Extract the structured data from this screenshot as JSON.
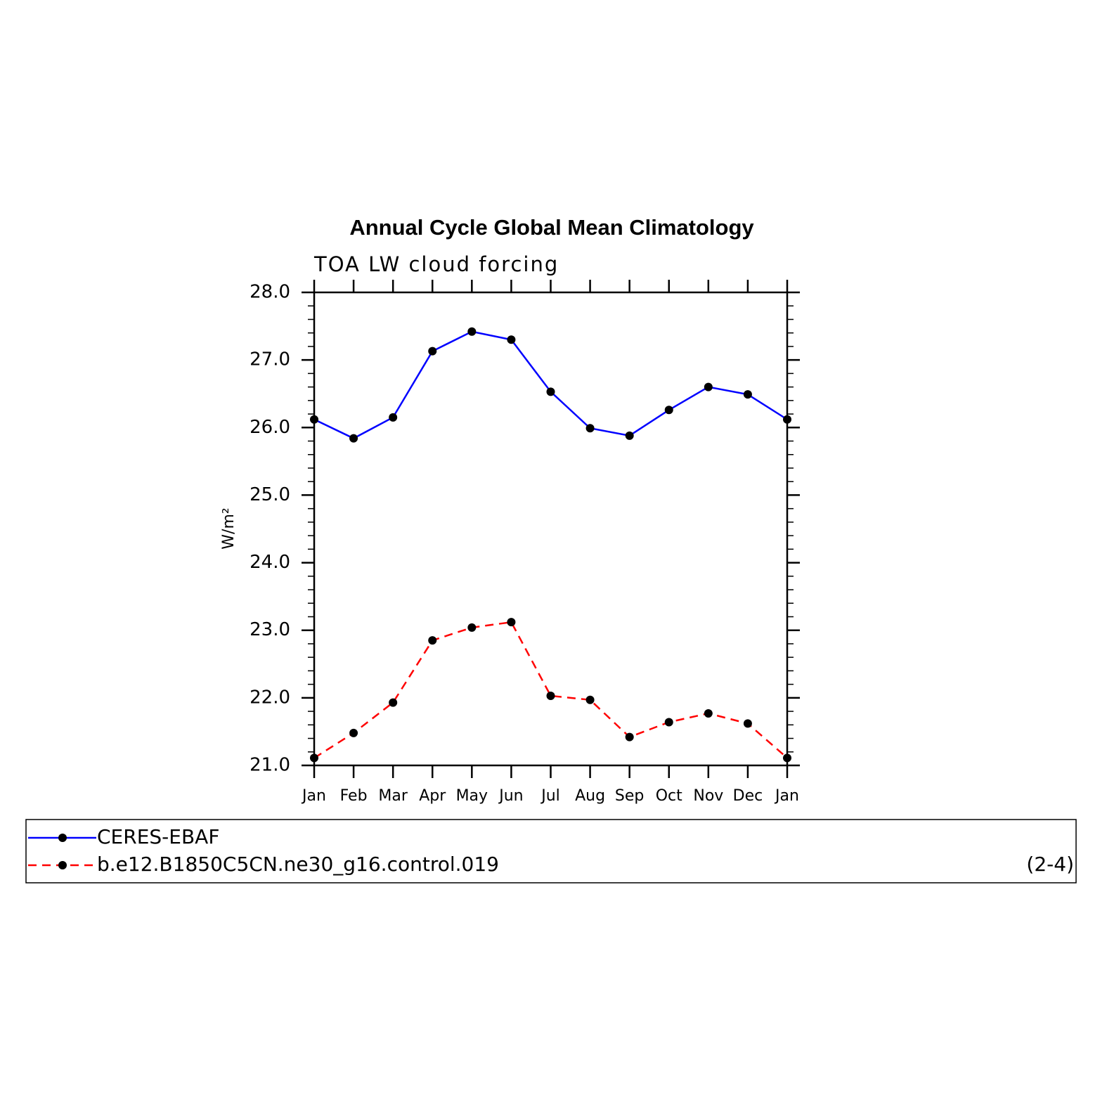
{
  "chart_data": {
    "type": "line",
    "title": "Annual Cycle Global Mean Climatology",
    "subtitle": "TOA LW cloud forcing",
    "y_label": "W/m²",
    "annotation": "(2-4)",
    "categories": [
      "Jan",
      "Feb",
      "Mar",
      "Apr",
      "May",
      "Jun",
      "Jul",
      "Aug",
      "Sep",
      "Oct",
      "Nov",
      "Dec",
      "Jan"
    ],
    "series": [
      {
        "name": "CERES-EBAF",
        "color": "#0000ff",
        "dash": "solid",
        "values": [
          26.12,
          25.84,
          26.15,
          27.13,
          27.42,
          27.3,
          26.53,
          25.99,
          25.88,
          26.26,
          26.6,
          26.49,
          26.12
        ]
      },
      {
        "name": "b.e12.B1850C5CN.ne30_g16.control.019",
        "color": "#ff0000",
        "dash": "dashed",
        "values": [
          21.11,
          21.48,
          21.93,
          22.85,
          23.04,
          23.12,
          22.03,
          21.97,
          21.42,
          21.64,
          21.77,
          21.62,
          21.11
        ]
      }
    ],
    "ylim": [
      21,
      28
    ],
    "yticks": [
      {
        "value": 21,
        "label": "21.0"
      },
      {
        "value": 22,
        "label": "22.0"
      },
      {
        "value": 23,
        "label": "23.0"
      },
      {
        "value": 24,
        "label": "24.0"
      },
      {
        "value": 25,
        "label": "25.0"
      },
      {
        "value": 26,
        "label": "26.0"
      },
      {
        "value": 27,
        "label": "27.0"
      },
      {
        "value": 28,
        "label": "28.0"
      }
    ],
    "marker_color": "#000000"
  }
}
